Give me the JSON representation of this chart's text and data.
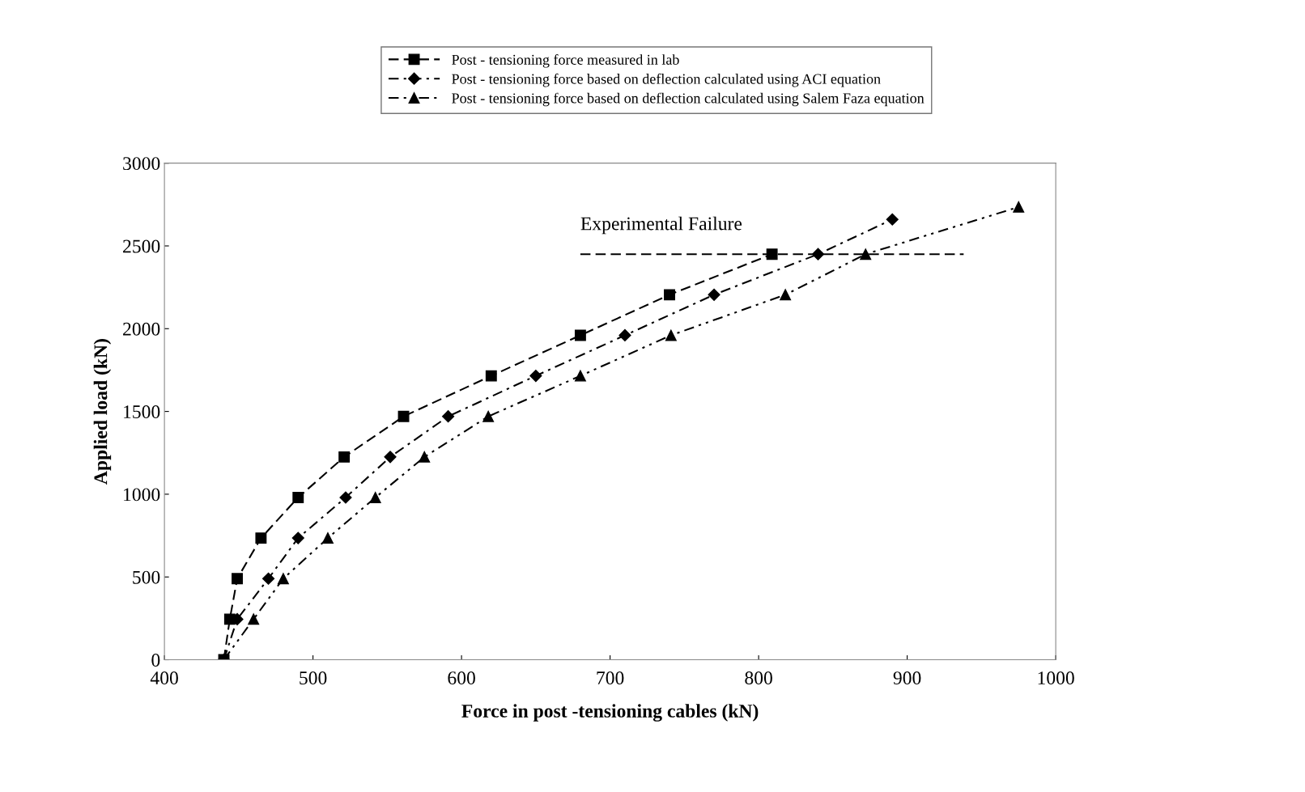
{
  "chart_data": {
    "type": "line",
    "xlabel": "Force in post -tensioning cables (kN)",
    "ylabel": "Applied load (kN)",
    "xlim": [
      400,
      1000
    ],
    "xticks": [
      400,
      500,
      600,
      700,
      800,
      900,
      1000
    ],
    "ylim": [
      0,
      3000
    ],
    "yticks": [
      0,
      500,
      1000,
      1500,
      2000,
      2500,
      3000
    ],
    "grid": false,
    "legend": "top",
    "series": [
      {
        "name": "Post - tensioning force measured in lab",
        "color": "#000000",
        "marker": "square",
        "line_style": "dashed",
        "x": [
          440,
          444,
          449,
          465,
          490,
          521,
          561,
          620,
          680,
          740,
          809
        ],
        "values": [
          0,
          245,
          490,
          735,
          980,
          1225,
          1470,
          1715,
          1960,
          2205,
          2450
        ]
      },
      {
        "name": "Post - tensioning force based on deflection calculated using ACI equation",
        "color": "#000000",
        "marker": "diamond",
        "line_style": "dashdot",
        "x": [
          440,
          449,
          470,
          490,
          522,
          552,
          591,
          650,
          710,
          770,
          840,
          890
        ],
        "values": [
          0,
          245,
          490,
          735,
          980,
          1225,
          1470,
          1715,
          1960,
          2205,
          2450,
          2660
        ]
      },
      {
        "name": "Post - tensioning force based on deflection calculated using Salem Faza equation",
        "color": "#000000",
        "marker": "triangle",
        "line_style": "dashdotdot",
        "x": [
          440,
          460,
          480,
          510,
          542,
          575,
          618,
          680,
          741,
          818,
          872,
          975
        ],
        "values": [
          0,
          245,
          490,
          735,
          980,
          1225,
          1470,
          1715,
          1960,
          2205,
          2450,
          2735
        ]
      },
      {
        "color": "#000000",
        "marker": "none",
        "line_style": "dashed",
        "x": [
          680,
          938
        ],
        "values": [
          2450,
          2450
        ]
      }
    ],
    "annotations": [
      {
        "text": "Experimental Failure",
        "x": 680,
        "y": 2450
      }
    ]
  }
}
